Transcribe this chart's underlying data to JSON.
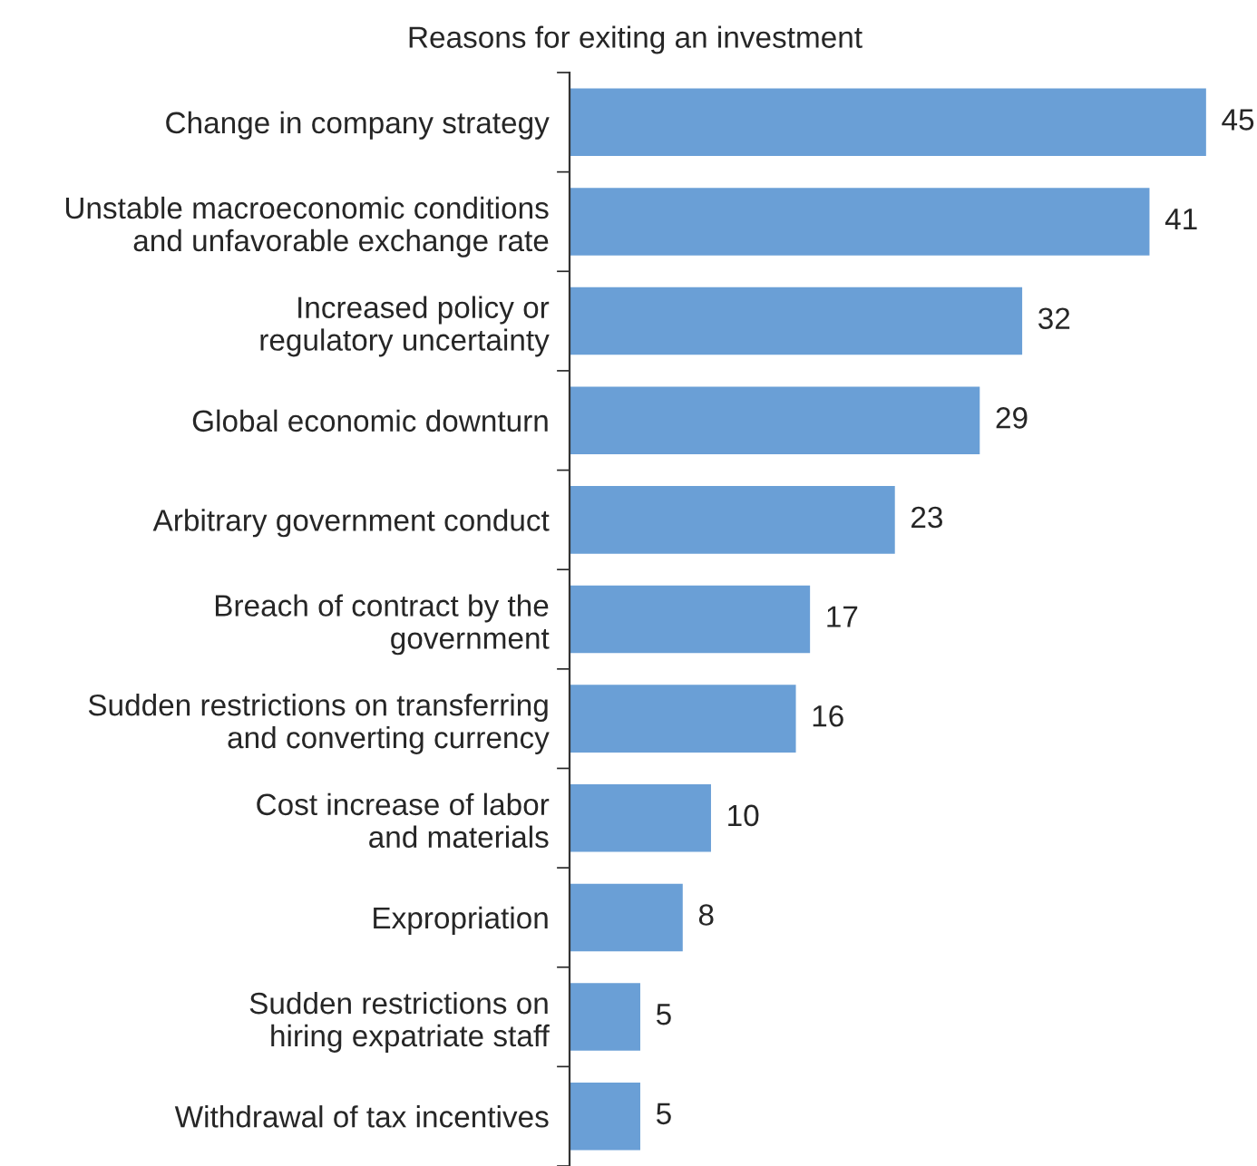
{
  "chart_data": {
    "type": "bar",
    "orientation": "horizontal",
    "title": "Reasons for exiting an investment",
    "categories": [
      "Change in company strategy",
      "Unstable macroeconomic conditions\nand unfavorable exchange rate",
      "Increased policy or\nregulatory uncertainty",
      "Global economic downturn",
      "Arbitrary government conduct",
      "Breach of contract by the\ngovernment",
      "Sudden restrictions on transferring\nand converting currency",
      "Cost increase of labor\nand materials",
      "Expropriation",
      "Sudden restrictions on\nhiring expatriate staff",
      "Withdrawal of tax incentives"
    ],
    "values": [
      45,
      41,
      32,
      29,
      23,
      17,
      16,
      10,
      8,
      5,
      5
    ],
    "color": "#6a9fd6",
    "data_labels": true,
    "grid": false,
    "legend": false
  }
}
